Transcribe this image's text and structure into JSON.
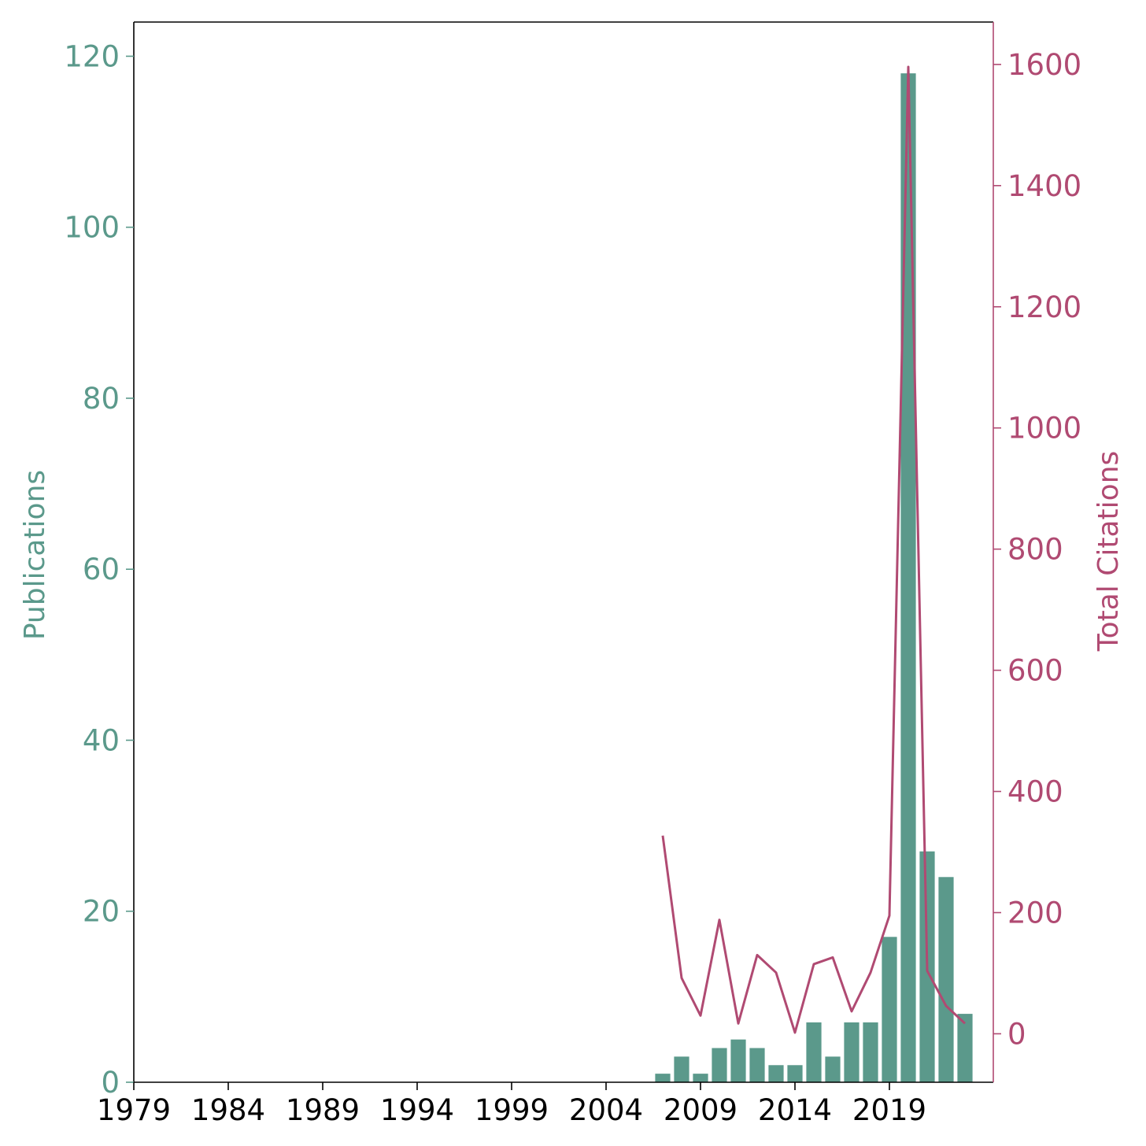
{
  "chart_data": {
    "type": "bar+line",
    "x_ticks": [
      "1979",
      "1984",
      "1989",
      "1994",
      "1999",
      "2004",
      "2009",
      "2014",
      "2019"
    ],
    "xlim": [
      1979,
      2024.5
    ],
    "left_axis": {
      "label": "Publications",
      "ylim": [
        0,
        124
      ],
      "ticks": [
        0,
        20,
        40,
        60,
        80,
        100,
        120
      ],
      "tick_labels": [
        "0",
        "20",
        "40",
        "60",
        "80",
        "100",
        "120"
      ]
    },
    "right_axis": {
      "label": "Total Citations",
      "ylim": [
        -80,
        1670
      ],
      "ticks": [
        0,
        200,
        400,
        600,
        800,
        1000,
        1200,
        1400,
        1600
      ],
      "tick_labels": [
        "0",
        "200",
        "400",
        "600",
        "800",
        "1000",
        "1200",
        "1400",
        "1600"
      ]
    },
    "series": [
      {
        "name": "Publications",
        "type": "bar",
        "axis": "left",
        "x": [
          2007,
          2008,
          2009,
          2010,
          2011,
          2012,
          2013,
          2014,
          2015,
          2016,
          2017,
          2018,
          2019,
          2020,
          2021,
          2022,
          2023
        ],
        "values": [
          1,
          3,
          1,
          4,
          5,
          4,
          2,
          2,
          7,
          3,
          7,
          7,
          17,
          118,
          27,
          24,
          8
        ]
      },
      {
        "name": "Total Citations",
        "type": "line",
        "axis": "right",
        "x": [
          2007,
          2008,
          2009,
          2010,
          2011,
          2012,
          2013,
          2014,
          2015,
          2016,
          2017,
          2018,
          2019,
          2020,
          2021,
          2022,
          2023
        ],
        "values": [
          327,
          92,
          30,
          188,
          17,
          130,
          101,
          2,
          115,
          126,
          37,
          101,
          195,
          1596,
          104,
          46,
          17
        ]
      }
    ]
  },
  "colors": {
    "bar": "#5b998b",
    "line": "#b04a72",
    "left_axis_text": "#5b998b",
    "right_axis_text": "#b04a72",
    "bottom_axis_text": "#000000"
  }
}
